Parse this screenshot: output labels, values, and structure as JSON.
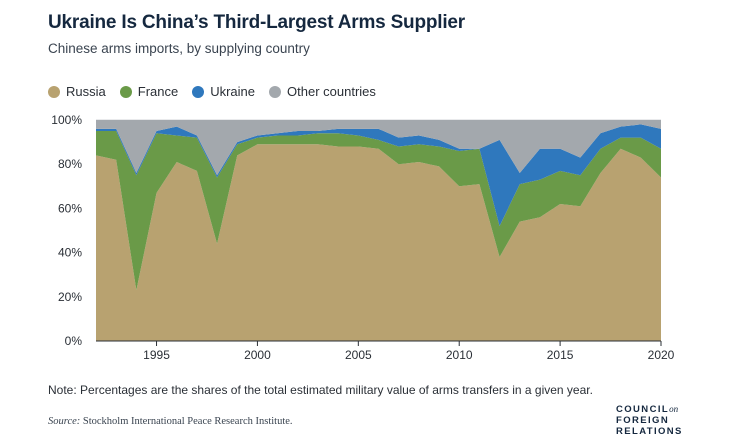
{
  "header": {
    "title": "Ukraine Is China’s Third-Largest Arms Supplier",
    "subtitle": "Chinese arms imports, by supplying country"
  },
  "legend": [
    {
      "label": "Russia",
      "color": "#b8a270"
    },
    {
      "label": "France",
      "color": "#6a9a48"
    },
    {
      "label": "Ukraine",
      "color": "#2f78bd"
    },
    {
      "label": "Other countries",
      "color": "#a3a8ad"
    }
  ],
  "chart_data": {
    "type": "area",
    "stacked": true,
    "x": [
      1992,
      1993,
      1994,
      1995,
      1996,
      1997,
      1998,
      1999,
      2000,
      2001,
      2002,
      2003,
      2004,
      2005,
      2006,
      2007,
      2008,
      2009,
      2010,
      2011,
      2012,
      2013,
      2014,
      2015,
      2016,
      2017,
      2018,
      2019,
      2020
    ],
    "series": [
      {
        "name": "Russia",
        "color": "#b8a270",
        "values": [
          84,
          82,
          23,
          67,
          81,
          77,
          44,
          84,
          89,
          89,
          89,
          89,
          88,
          88,
          87,
          80,
          81,
          79,
          70,
          71,
          38,
          54,
          56,
          62,
          61,
          76,
          87,
          83,
          74
        ]
      },
      {
        "name": "France",
        "color": "#6a9a48",
        "values": [
          11,
          13,
          52,
          27,
          12,
          15,
          30,
          5,
          3,
          4,
          4,
          5,
          6,
          5,
          4,
          8,
          8,
          9,
          16,
          16,
          14,
          17,
          17,
          15,
          14,
          11,
          5,
          9,
          13
        ]
      },
      {
        "name": "Ukraine",
        "color": "#2f78bd",
        "values": [
          1,
          1,
          1,
          1,
          4,
          1,
          1,
          1,
          1,
          1,
          2,
          1,
          2,
          3,
          5,
          4,
          4,
          3,
          1,
          0,
          39,
          5,
          14,
          10,
          8,
          7,
          5,
          6,
          9
        ]
      },
      {
        "name": "Other countries",
        "color": "#a3a8ad",
        "values": [
          4,
          4,
          24,
          5,
          3,
          7,
          25,
          10,
          7,
          6,
          5,
          5,
          4,
          4,
          4,
          8,
          7,
          9,
          13,
          13,
          9,
          24,
          13,
          13,
          17,
          6,
          3,
          2,
          4
        ]
      }
    ],
    "x_ticks": [
      "1995",
      "2000",
      "2005",
      "2010",
      "2015",
      "2020"
    ],
    "y_ticks": [
      "0%",
      "20%",
      "40%",
      "60%",
      "80%",
      "100%"
    ],
    "ylim": [
      0,
      100
    ],
    "xlim": [
      1992,
      2020
    ],
    "grid": true,
    "legend_position": "top-left"
  },
  "note": "Note: Percentages are the shares of the total estimated military value of arms transfers in a given year.",
  "source": {
    "label": "Source:",
    "text": "Stockholm International Peace Research Institute."
  },
  "logo": {
    "line1": "COUNCIL",
    "line1_suffix": "on",
    "line2": "FOREIGN",
    "line3": "RELATIONS"
  }
}
